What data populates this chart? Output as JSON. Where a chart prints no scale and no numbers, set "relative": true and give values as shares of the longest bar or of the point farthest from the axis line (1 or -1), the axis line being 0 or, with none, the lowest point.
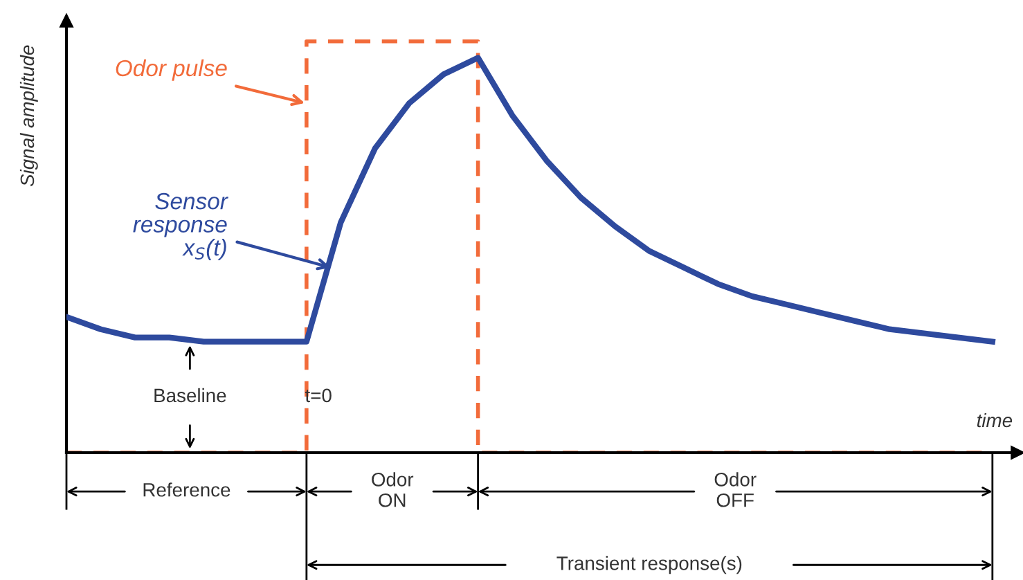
{
  "chart_data": {
    "type": "line",
    "relative": true,
    "xlabel": "time",
    "ylabel": "Signal amplitude",
    "grid": false,
    "categories": [
      null,
      null,
      null,
      null,
      null,
      null,
      null,
      null,
      null,
      null,
      null,
      null,
      null,
      null,
      null,
      null,
      null,
      null,
      null,
      null,
      null,
      null,
      null,
      null,
      null,
      null,
      null,
      null
    ],
    "series": [
      {
        "name": "Odor pulse",
        "type": "step",
        "color": "#f26b3a",
        "line_style": "dashed",
        "values": [
          0,
          0,
          0,
          0,
          0,
          0,
          0,
          1,
          1,
          1,
          1,
          1,
          0,
          0,
          0,
          0,
          0,
          0,
          0,
          0,
          0,
          0,
          0,
          0,
          0,
          0,
          0,
          0
        ]
      },
      {
        "name": "Sensor\nresponse\nx$_{S}$(t)",
        "color": "#2e4a9e",
        "line_style": "solid",
        "values": [
          0.33,
          0.3,
          0.28,
          0.28,
          0.27,
          0.27,
          0.27,
          0.27,
          0.56,
          0.74,
          0.85,
          0.92,
          0.96,
          0.82,
          0.71,
          0.62,
          0.55,
          0.49,
          0.45,
          0.41,
          0.38,
          0.36,
          0.34,
          0.32,
          0.3,
          0.29,
          0.28,
          0.27
        ]
      }
    ],
    "annotations": [
      "Baseline",
      "t=0",
      "Reference",
      "Odor\nON",
      "Odor\nOFF",
      "Transient response(s)"
    ]
  }
}
